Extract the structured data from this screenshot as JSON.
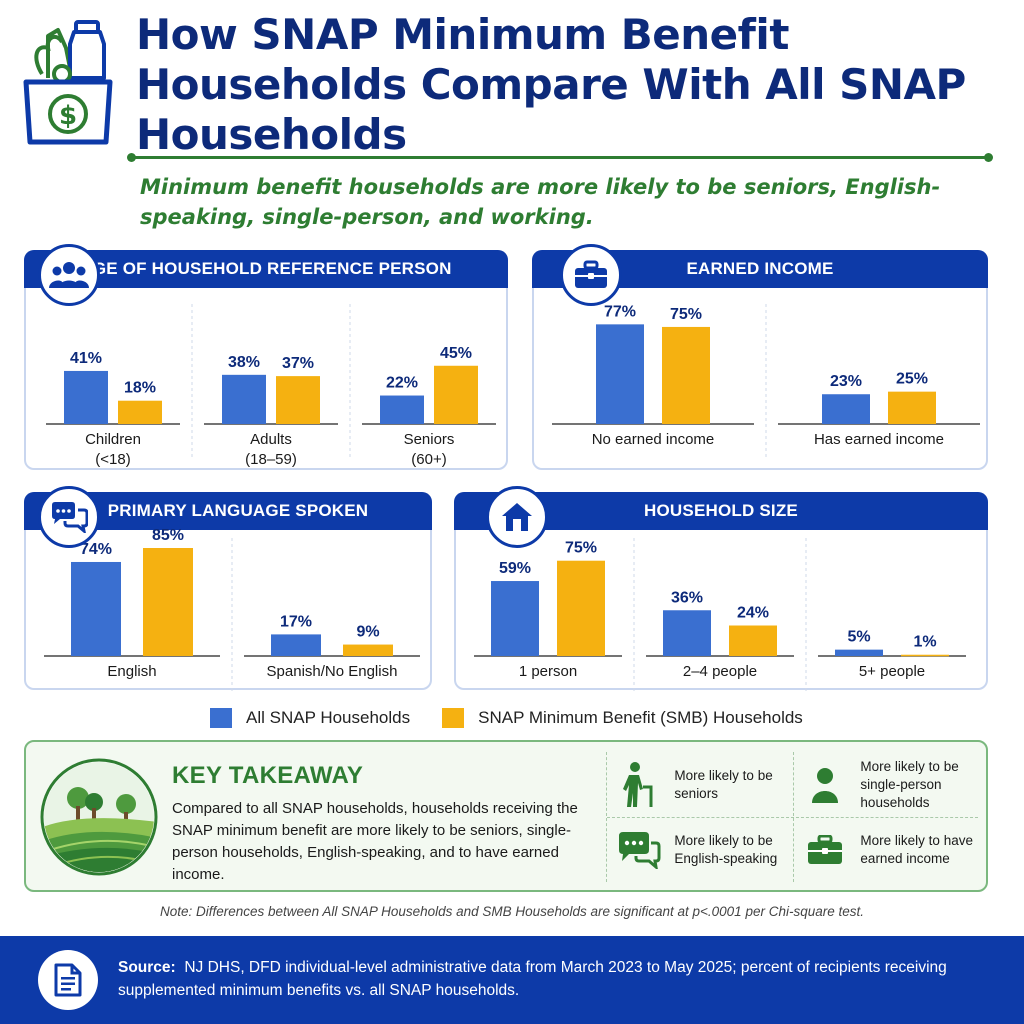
{
  "header": {
    "title": "How SNAP Minimum Benefit Households Compare With All SNAP Households",
    "subtitle": "Minimum benefit households are more likely to be seniors, English-speaking, single-person, and working.",
    "icon": "grocery-bag-dollar-icon"
  },
  "colors": {
    "all": "#3a6fd0",
    "smb": "#f5b111",
    "navy": "#0d3aa8",
    "green": "#2e7d32",
    "label": "#0d2a7a"
  },
  "legend": {
    "all_label": "All SNAP Households",
    "smb_label": "SNAP Minimum Benefit (SMB) Households"
  },
  "chart_data": [
    {
      "id": "age",
      "type": "bar",
      "title": "AGE OF HOUSEHOLD REFERENCE PERSON",
      "icon": "people-group-icon",
      "categories": [
        "Children\n(<18)",
        "Adults\n(18–59)",
        "Seniors\n(60+)"
      ],
      "series": [
        {
          "name": "All SNAP Households",
          "values": [
            41,
            38,
            22
          ]
        },
        {
          "name": "SNAP Minimum Benefit (SMB) Households",
          "values": [
            18,
            37,
            45
          ]
        }
      ],
      "ylim": [
        0,
        100
      ]
    },
    {
      "id": "income",
      "type": "bar",
      "title": "EARNED INCOME",
      "icon": "briefcase-icon",
      "categories": [
        "No earned income",
        "Has earned income"
      ],
      "series": [
        {
          "name": "All SNAP Households",
          "values": [
            77,
            23
          ]
        },
        {
          "name": "SNAP Minimum Benefit (SMB) Households",
          "values": [
            75,
            25
          ]
        }
      ],
      "ylim": [
        0,
        100
      ]
    },
    {
      "id": "language",
      "type": "bar",
      "title": "PRIMARY LANGUAGE SPOKEN",
      "icon": "speech-bubbles-icon",
      "categories": [
        "English",
        "Spanish/No English"
      ],
      "series": [
        {
          "name": "All SNAP Households",
          "values": [
            74,
            17
          ]
        },
        {
          "name": "SNAP Minimum Benefit (SMB) Households",
          "values": [
            85,
            9
          ]
        }
      ],
      "ylim": [
        0,
        100
      ]
    },
    {
      "id": "size",
      "type": "bar",
      "title": "HOUSEHOLD SIZE",
      "icon": "house-icon",
      "categories": [
        "1 person",
        "2–4 people",
        "5+ people"
      ],
      "series": [
        {
          "name": "All SNAP Households",
          "values": [
            59,
            36,
            5
          ]
        },
        {
          "name": "SNAP Minimum Benefit (SMB) Households",
          "values": [
            75,
            24,
            1
          ]
        }
      ],
      "ylim": [
        0,
        100
      ]
    }
  ],
  "takeaway": {
    "title": "KEY TAKEAWAY",
    "body": "Compared to all SNAP households, households receiving the SNAP minimum benefit are more likely to be seniors, single-person households, English-speaking, and to have earned income.",
    "icon": "farm-landscape-icon",
    "items": [
      {
        "label": "More likely to be seniors",
        "icon": "senior-with-cane-icon"
      },
      {
        "label": "More likely to be single-person households",
        "icon": "person-icon"
      },
      {
        "label": "More likely to be English-speaking",
        "icon": "speech-bubbles-icon"
      },
      {
        "label": "More likely to have earned income",
        "icon": "briefcase-icon"
      }
    ]
  },
  "note": "Note: Differences between All SNAP Households and SMB Households are significant at p<.0001 per Chi-square test.",
  "footer": {
    "source_label": "Source:",
    "source_text": "NJ DHS, DFD individual-level administrative data from March 2023 to May 2025; percent of recipients receiving supplemented minimum benefits vs. all SNAP households.",
    "icon": "document-icon"
  }
}
